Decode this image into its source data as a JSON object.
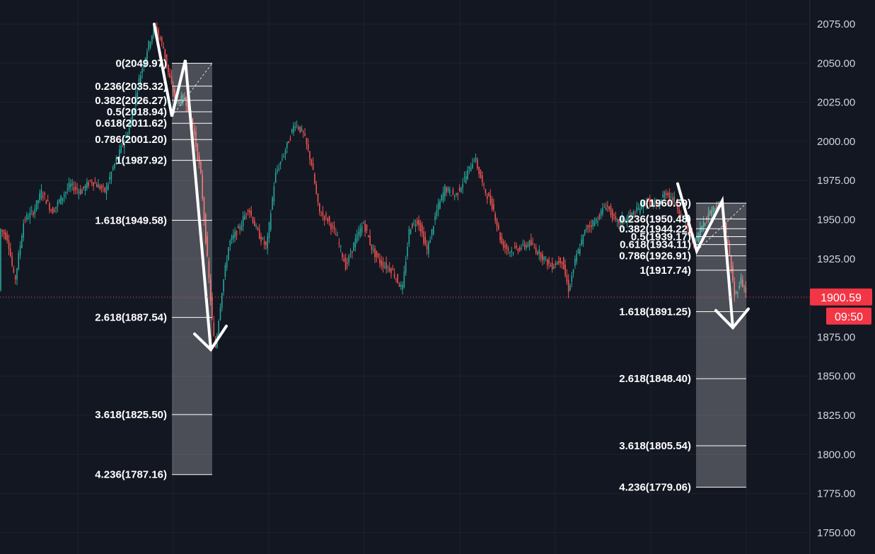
{
  "chart_data": {
    "type": "candlestick",
    "ylim": [
      1740,
      2085
    ],
    "y_ticks": [
      "2075.00",
      "2050.00",
      "2025.00",
      "2000.00",
      "1975.00",
      "1950.00",
      "1925.00",
      "1900.00",
      "1875.00",
      "1850.00",
      "1825.00",
      "1800.00",
      "1775.00",
      "1750.00"
    ],
    "y_tick_values": [
      2075,
      2050,
      2025,
      2000,
      1975,
      1950,
      1925,
      1900,
      1875,
      1850,
      1825,
      1800,
      1775,
      1750
    ],
    "current_price": {
      "value": 1900.59,
      "label": "1900.59",
      "countdown": "09:50"
    },
    "price_path": [
      [
        0,
        1945
      ],
      [
        12,
        1938
      ],
      [
        22,
        1910
      ],
      [
        35,
        1950
      ],
      [
        48,
        1955
      ],
      [
        60,
        1968
      ],
      [
        75,
        1955
      ],
      [
        85,
        1962
      ],
      [
        100,
        1972
      ],
      [
        115,
        1968
      ],
      [
        130,
        1975
      ],
      [
        150,
        1968
      ],
      [
        160,
        1982
      ],
      [
        172,
        1995
      ],
      [
        185,
        2010
      ],
      [
        198,
        2040
      ],
      [
        210,
        2060
      ],
      [
        220,
        2074
      ],
      [
        232,
        2060
      ],
      [
        240,
        2042
      ],
      [
        250,
        2025
      ],
      [
        262,
        2028
      ],
      [
        272,
        2015
      ],
      [
        285,
        1978
      ],
      [
        295,
        1920
      ],
      [
        305,
        1866
      ],
      [
        315,
        1905
      ],
      [
        325,
        1935
      ],
      [
        340,
        1945
      ],
      [
        352,
        1958
      ],
      [
        365,
        1942
      ],
      [
        378,
        1932
      ],
      [
        390,
        1978
      ],
      [
        405,
        1995
      ],
      [
        418,
        2012
      ],
      [
        430,
        2005
      ],
      [
        442,
        1985
      ],
      [
        452,
        1955
      ],
      [
        465,
        1950
      ],
      [
        478,
        1938
      ],
      [
        490,
        1920
      ],
      [
        502,
        1935
      ],
      [
        515,
        1948
      ],
      [
        528,
        1930
      ],
      [
        540,
        1922
      ],
      [
        555,
        1918
      ],
      [
        570,
        1905
      ],
      [
        580,
        1945
      ],
      [
        592,
        1950
      ],
      [
        605,
        1930
      ],
      [
        618,
        1955
      ],
      [
        630,
        1970
      ],
      [
        645,
        1965
      ],
      [
        660,
        1978
      ],
      [
        672,
        1990
      ],
      [
        685,
        1970
      ],
      [
        698,
        1958
      ],
      [
        710,
        1935
      ],
      [
        722,
        1930
      ],
      [
        735,
        1932
      ],
      [
        750,
        1935
      ],
      [
        765,
        1928
      ],
      [
        780,
        1920
      ],
      [
        795,
        1925
      ],
      [
        805,
        1905
      ],
      [
        815,
        1925
      ],
      [
        830,
        1945
      ],
      [
        845,
        1950
      ],
      [
        858,
        1960
      ],
      [
        872,
        1948
      ],
      [
        885,
        1950
      ],
      [
        900,
        1955
      ],
      [
        915,
        1962
      ],
      [
        930,
        1958
      ],
      [
        942,
        1968
      ],
      [
        955,
        1962
      ],
      [
        968,
        1950
      ],
      [
        983,
        1935
      ],
      [
        995,
        1948
      ],
      [
        1008,
        1957
      ],
      [
        1020,
        1960
      ],
      [
        1030,
        1935
      ],
      [
        1040,
        1900
      ],
      [
        1048,
        1912
      ],
      [
        1055,
        1905
      ]
    ],
    "fibonacci": [
      {
        "levels": [
          {
            "label": "0(2049.97)",
            "value": 2049.97
          },
          {
            "label": "0.236(2035.32)",
            "value": 2035.32
          },
          {
            "label": "0.382(2026.27)",
            "value": 2026.27
          },
          {
            "label": "0.5(2018.94)",
            "value": 2018.94
          },
          {
            "label": "0.618(2011.62)",
            "value": 2011.62
          },
          {
            "label": "0.786(2001.20)",
            "value": 2001.2
          },
          {
            "label": "1(1987.92)",
            "value": 1987.92
          },
          {
            "label": "1.618(1949.58)",
            "value": 1949.58
          },
          {
            "label": "2.618(1887.54)",
            "value": 1887.54
          },
          {
            "label": "3.618(1825.50)",
            "value": 1825.5
          },
          {
            "label": "4.236(1787.16)",
            "value": 1787.16
          }
        ],
        "wave": [
          [
            218,
            2075
          ],
          [
            243,
            2016
          ],
          [
            262,
            2052
          ],
          [
            298,
            1867
          ]
        ],
        "arrowhead": [
          [
            275,
            1877
          ],
          [
            298,
            1867
          ],
          [
            320,
            1882
          ]
        ]
      },
      {
        "levels": [
          {
            "label": "0(1960.59)",
            "value": 1960.59
          },
          {
            "label": "0.236(1950.48)",
            "value": 1950.48
          },
          {
            "label": "0.382(1944.22)",
            "value": 1944.22
          },
          {
            "label": "0.5(1939.17)",
            "value": 1939.17
          },
          {
            "label": "0.618(1934.11)",
            "value": 1934.11
          },
          {
            "label": "0.786(1926.91)",
            "value": 1926.91
          },
          {
            "label": "1(1917.74)",
            "value": 1917.74
          },
          {
            "label": "1.618(1891.25)",
            "value": 1891.25
          },
          {
            "label": "2.618(1848.40)",
            "value": 1848.4
          },
          {
            "label": "3.618(1805.54)",
            "value": 1805.54
          },
          {
            "label": "4.236(1779.06)",
            "value": 1779.06
          }
        ],
        "wave": [
          [
            958,
            1973
          ],
          [
            985,
            1930
          ],
          [
            1021,
            1962
          ],
          [
            1036,
            1881
          ]
        ],
        "arrowhead": [
          [
            1012,
            1892
          ],
          [
            1036,
            1881
          ],
          [
            1058,
            1893
          ]
        ]
      }
    ]
  }
}
